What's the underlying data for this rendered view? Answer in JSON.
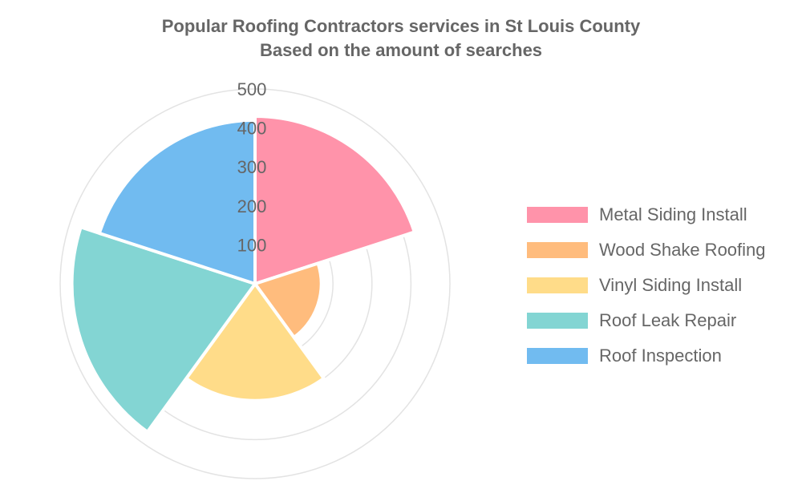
{
  "chart_data": {
    "type": "polar-area",
    "title": "Popular Roofing Contractors services in St Louis County",
    "subtitle": "Based on the amount of searches",
    "categories": [
      "Metal Siding Install",
      "Wood Shake Roofing",
      "Vinyl Siding Install",
      "Roof Leak Repair",
      "Roof Inspection"
    ],
    "values": [
      430,
      170,
      300,
      470,
      420
    ],
    "colors": [
      "#ff93aa",
      "#ffbc7d",
      "#ffdc89",
      "#83d5d3",
      "#71bbf0"
    ],
    "radial_axis": {
      "min": 0,
      "max": 500,
      "ticks": [
        100,
        200,
        300,
        400,
        500
      ]
    },
    "grid": true,
    "legend_position": "right"
  }
}
